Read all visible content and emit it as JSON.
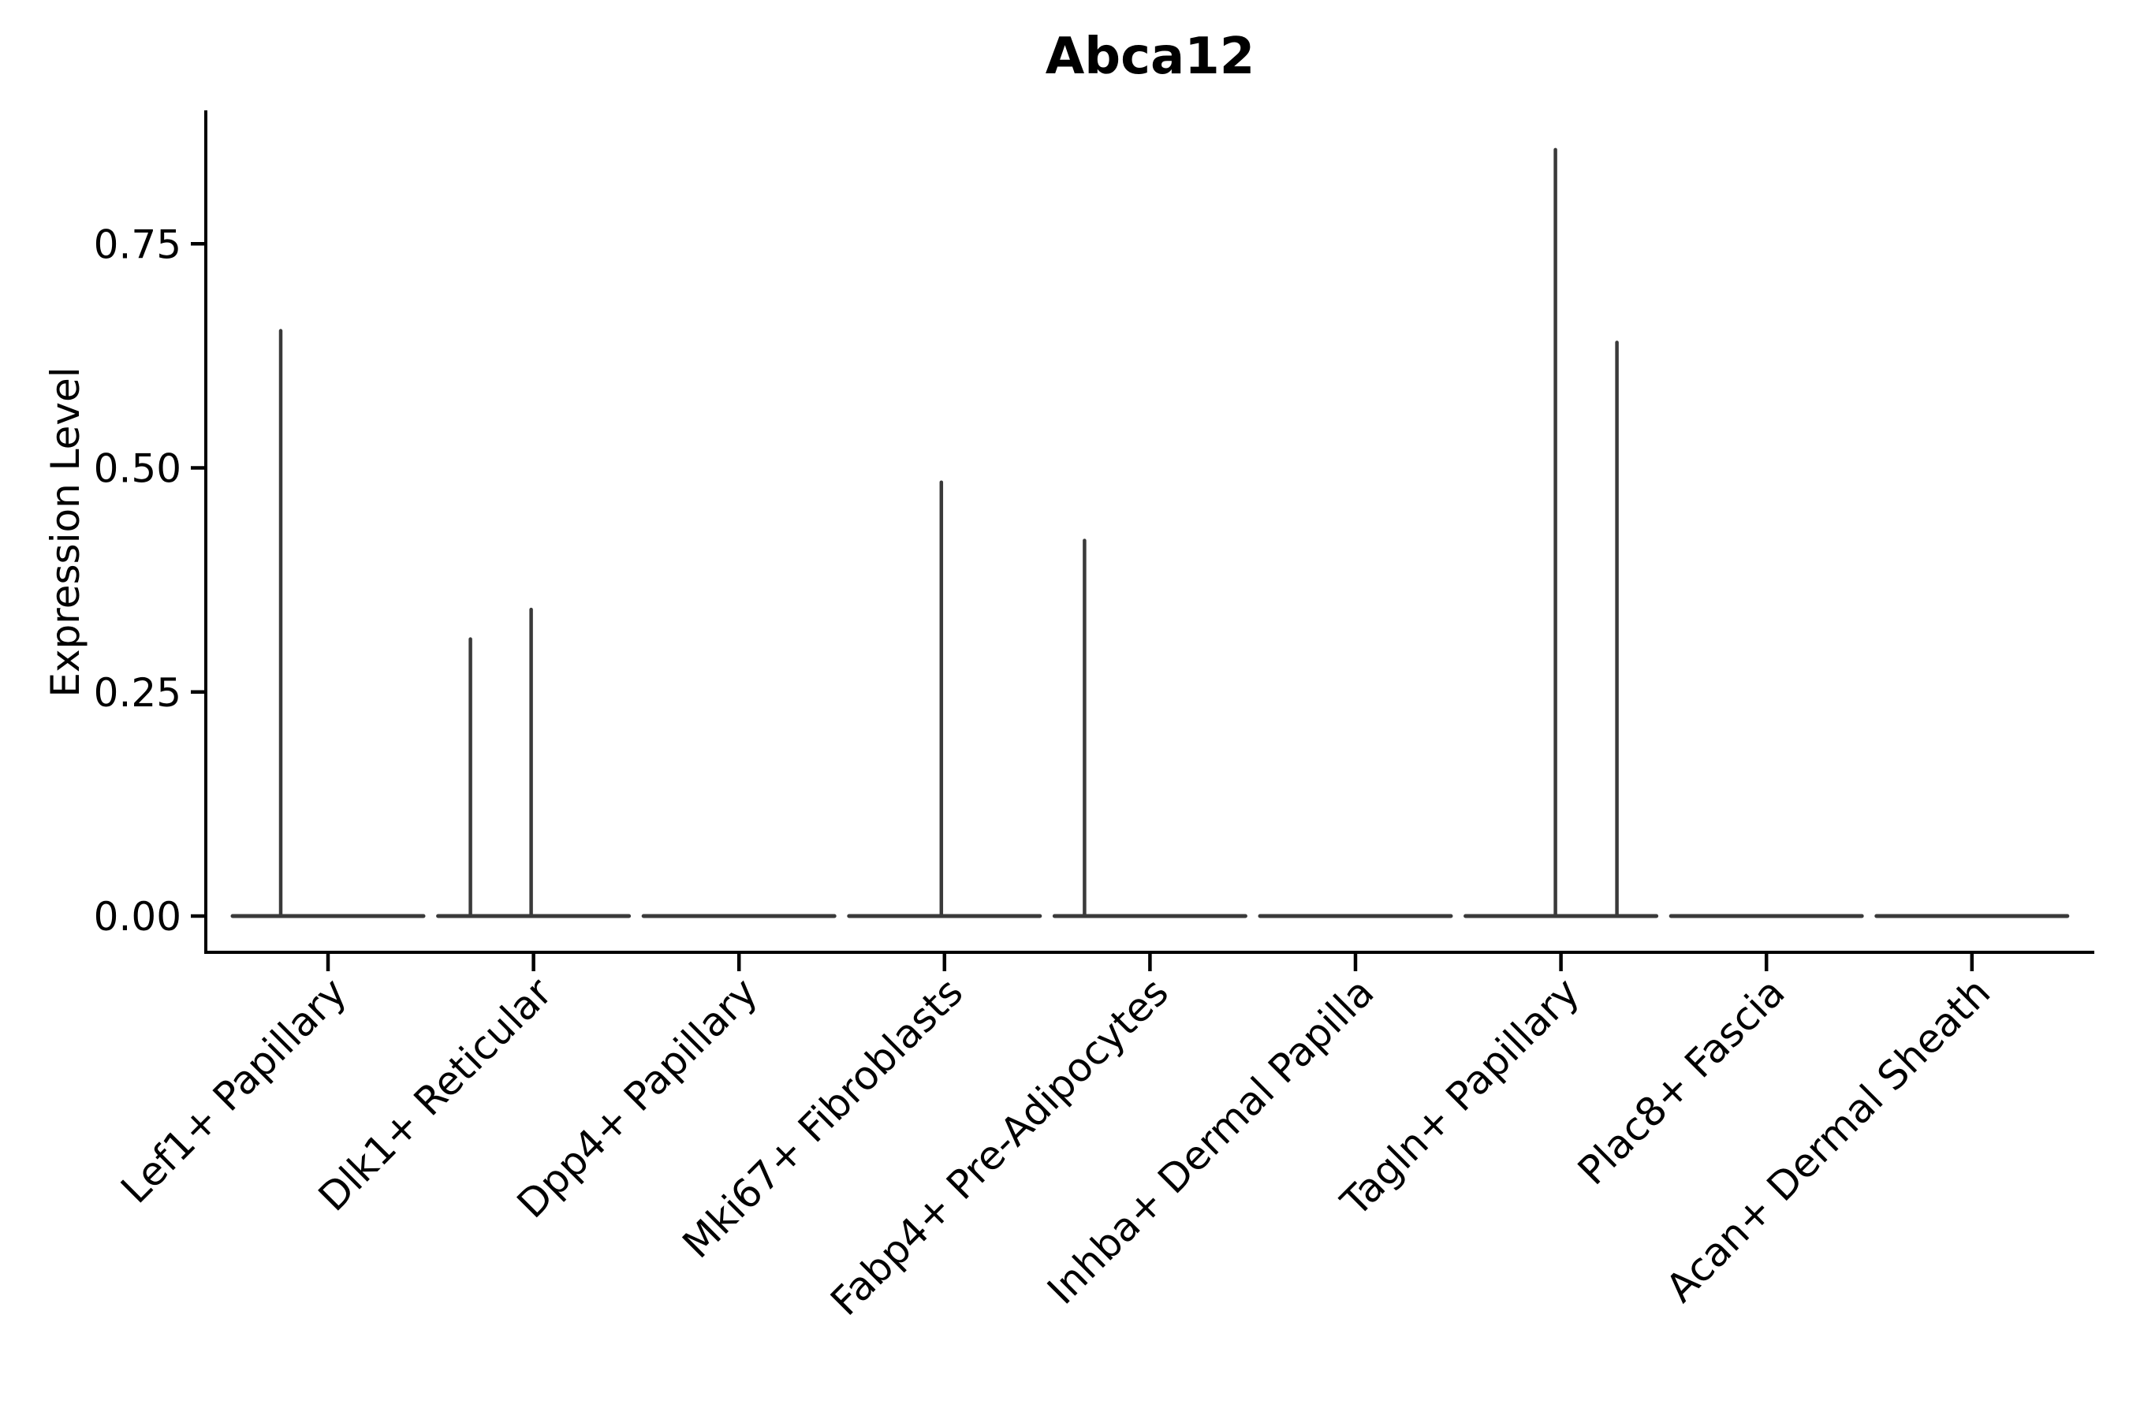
{
  "title": "Abca12",
  "chart_data": {
    "type": "violin",
    "title": "Abca12",
    "ylabel": "Expression Level",
    "xlabel": "",
    "legend": null,
    "grid": false,
    "background": "#FFFFFF",
    "ylim": [
      -0.04,
      0.9
    ],
    "yticks": [
      {
        "label": "0.00",
        "value": 0.0
      },
      {
        "label": "0.25",
        "value": 0.25
      },
      {
        "label": "0.50",
        "value": 0.5
      },
      {
        "label": "0.75",
        "value": 0.75
      }
    ],
    "categories": [
      "Lef1+ Papillary",
      "Dlk1+ Reticular",
      "Dpp4+ Papillary",
      "Mki67+ Fibroblasts",
      "Fabp4+ Pre-Adipocytes",
      "Inhba+ Dermal Papilla",
      "Tagln+ Papillary",
      "Plac8+ Fascia",
      "Acan+ Dermal Sheath"
    ],
    "violins": [
      {
        "category": "Lef1+ Papillary",
        "baseline_value": 0,
        "spikes": [
          {
            "dx": -60,
            "value": 0.653
          }
        ]
      },
      {
        "category": "Dlk1+ Reticular",
        "baseline_value": 0,
        "spikes": [
          {
            "dx": -80,
            "value": 0.309
          },
          {
            "dx": -3,
            "value": 0.342
          }
        ]
      },
      {
        "category": "Dpp4+ Papillary",
        "baseline_value": 0,
        "spikes": []
      },
      {
        "category": "Mki67+ Fibroblasts",
        "baseline_value": 0,
        "spikes": [
          {
            "dx": -4,
            "value": 0.484
          }
        ]
      },
      {
        "category": "Fabp4+ Pre-Adipocytes",
        "baseline_value": 0,
        "spikes": [
          {
            "dx": -83,
            "value": 0.419
          }
        ]
      },
      {
        "category": "Inhba+ Dermal Papilla",
        "baseline_value": 0,
        "spikes": []
      },
      {
        "category": "Tagln+ Papillary",
        "baseline_value": 0,
        "spikes": [
          {
            "dx": -7,
            "value": 0.855
          },
          {
            "dx": 71,
            "value": 0.64
          }
        ]
      },
      {
        "category": "Plac8+ Fascia",
        "baseline_value": 0,
        "spikes": []
      },
      {
        "category": "Acan+ Dermal Sheath",
        "baseline_value": 0,
        "spikes": []
      }
    ],
    "colors": {
      "violin": "#3A3A3A",
      "axis": "#000000",
      "text": "#000000",
      "background": "#FFFFFF"
    }
  }
}
